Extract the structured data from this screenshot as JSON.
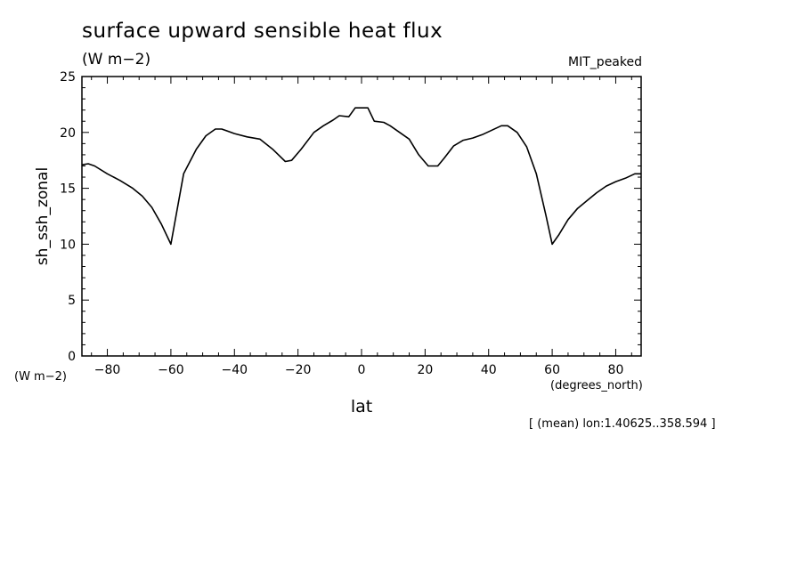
{
  "figure": {
    "title": "surface upward sensible heat flux",
    "units": "(W m−2)",
    "run_label": "MIT_peaked",
    "avg_note": "[ (mean) lon:1.40625..358.594 ]"
  },
  "chart_data": {
    "type": "line",
    "ylabel": "sh_ssh_zonal",
    "y_units": "(W m−2)",
    "xlabel": "lat",
    "x_units": "(degrees_north)",
    "xlim": [
      -88,
      88
    ],
    "ylim": [
      0,
      25
    ],
    "x_ticks": [
      -80,
      -60,
      -40,
      -20,
      0,
      20,
      40,
      60,
      80
    ],
    "x_tick_labels": [
      "−80",
      "−60",
      "−40",
      "−20",
      "0",
      "20",
      "40",
      "60",
      "80"
    ],
    "y_ticks": [
      0,
      5,
      10,
      15,
      20,
      25
    ],
    "y_tick_labels": [
      "0",
      "5",
      "10",
      "15",
      "20",
      "25"
    ],
    "series": [
      {
        "x": [
          -88,
          -86,
          -84,
          -80,
          -76,
          -72,
          -69,
          -66,
          -63,
          -60,
          -56,
          -52,
          -49,
          -46,
          -44,
          -40,
          -36,
          -32,
          -28,
          -24,
          -22,
          -19,
          -15,
          -12,
          -9,
          -7,
          -4,
          -2,
          0,
          2,
          4,
          7,
          9,
          12,
          15,
          18,
          21,
          24,
          26,
          29,
          32,
          35,
          38,
          41,
          44,
          46,
          49,
          52,
          55,
          58,
          60,
          62,
          65,
          68,
          71,
          74,
          77,
          80,
          83,
          86,
          88
        ],
        "y": [
          17.1,
          17.2,
          17.0,
          16.3,
          15.7,
          15.0,
          14.3,
          13.3,
          11.8,
          10.0,
          16.3,
          18.5,
          19.7,
          20.3,
          20.3,
          19.9,
          19.6,
          19.4,
          18.5,
          17.4,
          17.5,
          18.5,
          20.0,
          20.6,
          21.1,
          21.5,
          21.4,
          22.2,
          22.2,
          22.2,
          21.0,
          20.9,
          20.6,
          20.0,
          19.4,
          18.0,
          17.0,
          17.0,
          17.7,
          18.8,
          19.3,
          19.5,
          19.8,
          20.2,
          20.6,
          20.6,
          20.0,
          18.7,
          16.3,
          12.6,
          10.0,
          10.8,
          12.2,
          13.2,
          13.9,
          14.6,
          15.2,
          15.6,
          15.9,
          16.3,
          16.3
        ]
      }
    ]
  }
}
